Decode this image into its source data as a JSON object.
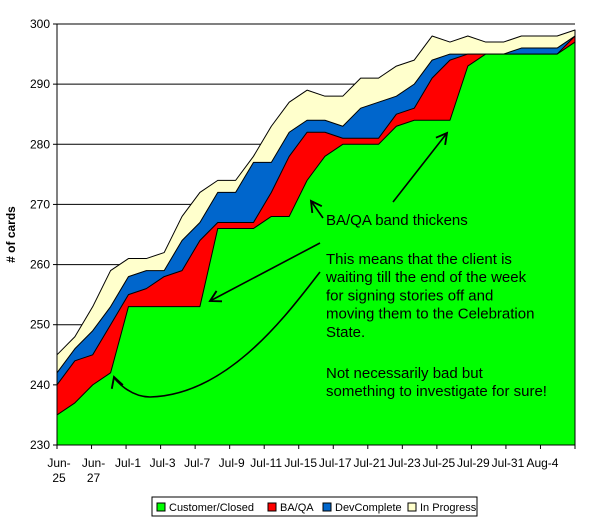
{
  "chart_data": {
    "type": "area",
    "stacked": true,
    "title": "",
    "xlabel": "",
    "ylabel": "# of cards",
    "ylim": [
      230,
      300
    ],
    "yticks": [
      230,
      240,
      250,
      260,
      270,
      280,
      290,
      300
    ],
    "grid": "horizontal",
    "legend_position": "bottom",
    "x_tick_labels": [
      [
        "Jun-",
        "25"
      ],
      [
        "Jun-",
        "27"
      ],
      [
        "Jul-1"
      ],
      [
        "Jul-3"
      ],
      [
        "Jul-7"
      ],
      [
        "Jul-9"
      ],
      [
        "Jul-11"
      ],
      [
        "Jul-15"
      ],
      [
        "Jul-17"
      ],
      [
        "Jul-21"
      ],
      [
        "Jul-23"
      ],
      [
        "Jul-25"
      ],
      [
        "Jul-29"
      ],
      [
        "Jul-31"
      ],
      [
        "Aug-4"
      ]
    ],
    "series": [
      {
        "name": "Customer/Closed",
        "color": "#00FF00",
        "cumulative": [
          235,
          237,
          240,
          242,
          253,
          253,
          253,
          253,
          253,
          266,
          266,
          266,
          268,
          268,
          274,
          278,
          280,
          280,
          280,
          283,
          284,
          284,
          284,
          293,
          295,
          295,
          295,
          295,
          295,
          297
        ]
      },
      {
        "name": "BA/QA",
        "color": "#FF0000",
        "cumulative": [
          240,
          244,
          245,
          250,
          255,
          256,
          258,
          259,
          264,
          267,
          267,
          267,
          272,
          278,
          282,
          282,
          281,
          281,
          281,
          285,
          286,
          291,
          294,
          295,
          295,
          295,
          295,
          295,
          295,
          298
        ]
      },
      {
        "name": "DevComplete",
        "color": "#0066CC",
        "cumulative": [
          242,
          246,
          249,
          253,
          258,
          259,
          259,
          264,
          267,
          272,
          272,
          277,
          277,
          282,
          284,
          284,
          283,
          286,
          287,
          288,
          290,
          294,
          295,
          295,
          295,
          295,
          296,
          296,
          296,
          298
        ]
      },
      {
        "name": "In Progress",
        "color": "#FFFFCC",
        "cumulative": [
          245,
          248,
          253,
          259,
          261,
          261,
          262,
          268,
          272,
          274,
          274,
          278,
          283,
          287,
          289,
          288,
          288,
          291,
          291,
          293,
          294,
          298,
          297,
          298,
          297,
          297,
          298,
          298,
          298,
          299
        ]
      }
    ],
    "annotations": [
      {
        "lines": [
          "BA/QA band thickens"
        ]
      },
      {
        "lines": [
          "This means that the client is",
          "waiting till the end of the week",
          "for signing stories off and",
          "moving them to the Celebration",
          "State."
        ]
      },
      {
        "lines": [
          "Not necessarily bad but",
          "something to investigate for sure!"
        ]
      }
    ],
    "style": {
      "outline_color": "#000000",
      "grid_color": "#000000",
      "annotation_color": "#000000"
    }
  }
}
